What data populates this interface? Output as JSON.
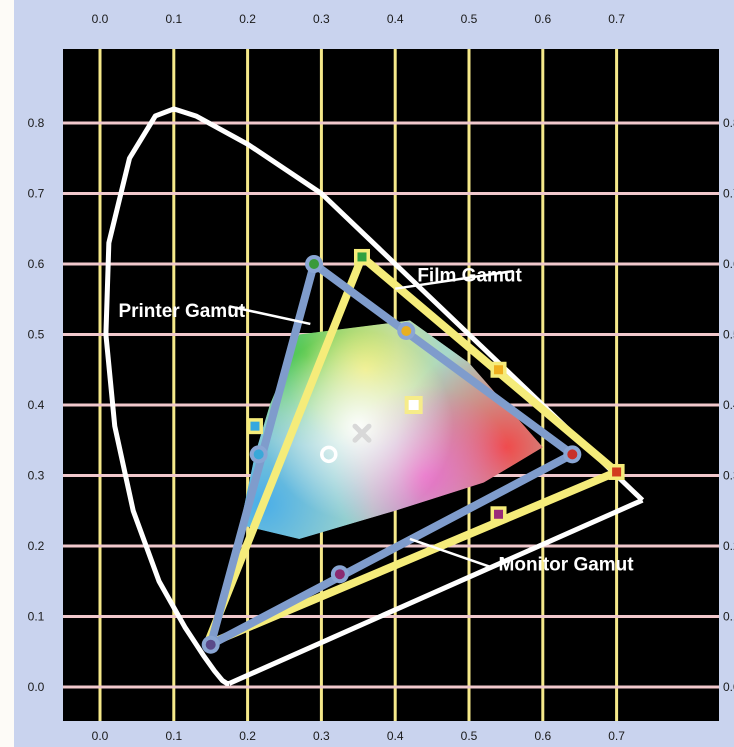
{
  "chart_data": {
    "type": "scatter",
    "title": "",
    "xlabel": "",
    "ylabel": "",
    "xlim": [
      0.0,
      0.75
    ],
    "ylim": [
      -0.02,
      0.85
    ],
    "x_ticks": [
      "0.0",
      "0.1",
      "0.2",
      "0.3",
      "0.4",
      "0.5",
      "0.6",
      "0.7"
    ],
    "y_ticks": [
      "0.0",
      "0.1",
      "0.2",
      "0.3",
      "0.4",
      "0.5",
      "0.6",
      "0.7",
      "0.8"
    ],
    "grid": true,
    "white_point": {
      "x": 0.31,
      "y": 0.33
    },
    "spectral_locus": [
      [
        0.175,
        0.005
      ],
      [
        0.172,
        0.005
      ],
      [
        0.166,
        0.009
      ],
      [
        0.155,
        0.023
      ],
      [
        0.14,
        0.045
      ],
      [
        0.115,
        0.085
      ],
      [
        0.08,
        0.15
      ],
      [
        0.045,
        0.25
      ],
      [
        0.02,
        0.37
      ],
      [
        0.008,
        0.5
      ],
      [
        0.012,
        0.63
      ],
      [
        0.04,
        0.75
      ],
      [
        0.075,
        0.81
      ],
      [
        0.1,
        0.82
      ],
      [
        0.13,
        0.81
      ],
      [
        0.2,
        0.77
      ],
      [
        0.3,
        0.7
      ],
      [
        0.4,
        0.6
      ],
      [
        0.5,
        0.5
      ],
      [
        0.6,
        0.4
      ],
      [
        0.7,
        0.3
      ],
      [
        0.735,
        0.265
      ]
    ],
    "purple_line": [
      [
        0.735,
        0.265
      ],
      [
        0.175,
        0.005
      ]
    ],
    "series": [
      {
        "name": "Film Gamut",
        "color": "#f5ec7a",
        "polygon": [
          [
            0.355,
            0.61
          ],
          [
            0.7,
            0.305
          ],
          [
            0.145,
            0.06
          ]
        ],
        "markers": [
          [
            0.355,
            0.61
          ],
          [
            0.54,
            0.45
          ],
          [
            0.7,
            0.305
          ],
          [
            0.54,
            0.245
          ],
          [
            0.21,
            0.37
          ]
        ],
        "marker_colors": [
          "#2fa040",
          "#f0b020",
          "#d23a1e",
          "#9a2a7a",
          "#35a8e0"
        ]
      },
      {
        "name": "Monitor Gamut",
        "color": "#7f9ccc",
        "polygon": [
          [
            0.29,
            0.6
          ],
          [
            0.64,
            0.33
          ],
          [
            0.15,
            0.06
          ]
        ],
        "markers": [
          [
            0.29,
            0.6
          ],
          [
            0.415,
            0.505
          ],
          [
            0.64,
            0.33
          ],
          [
            0.325,
            0.16
          ],
          [
            0.15,
            0.06
          ],
          [
            0.215,
            0.33
          ]
        ],
        "marker_colors": [
          "#3a9a3a",
          "#e8b020",
          "#c8302a",
          "#8a2a70",
          "#5a4a8a",
          "#3aa8d8"
        ]
      },
      {
        "name": "Printer Gamut",
        "color": "#ffffff",
        "region": [
          [
            0.27,
            0.5
          ],
          [
            0.42,
            0.52
          ],
          [
            0.5,
            0.46
          ],
          [
            0.6,
            0.34
          ],
          [
            0.52,
            0.29
          ],
          [
            0.4,
            0.25
          ],
          [
            0.27,
            0.21
          ],
          [
            0.19,
            0.23
          ],
          [
            0.21,
            0.33
          ],
          [
            0.23,
            0.4
          ]
        ]
      }
    ],
    "yellow_square": {
      "x": 0.425,
      "y": 0.4
    },
    "callouts": [
      {
        "label": "Film Gamut",
        "text_at": [
          0.43,
          0.575
        ],
        "line": [
          [
            0.4,
            0.565
          ],
          [
            0.56,
            0.59
          ]
        ]
      },
      {
        "label": "Printer Gamut",
        "text_at": [
          0.025,
          0.525
        ],
        "line": [
          [
            0.175,
            0.54
          ],
          [
            0.285,
            0.515
          ]
        ]
      },
      {
        "label": "Monitor Gamut",
        "text_at": [
          0.54,
          0.165
        ],
        "line": [
          [
            0.42,
            0.21
          ],
          [
            0.53,
            0.17
          ]
        ]
      }
    ]
  }
}
